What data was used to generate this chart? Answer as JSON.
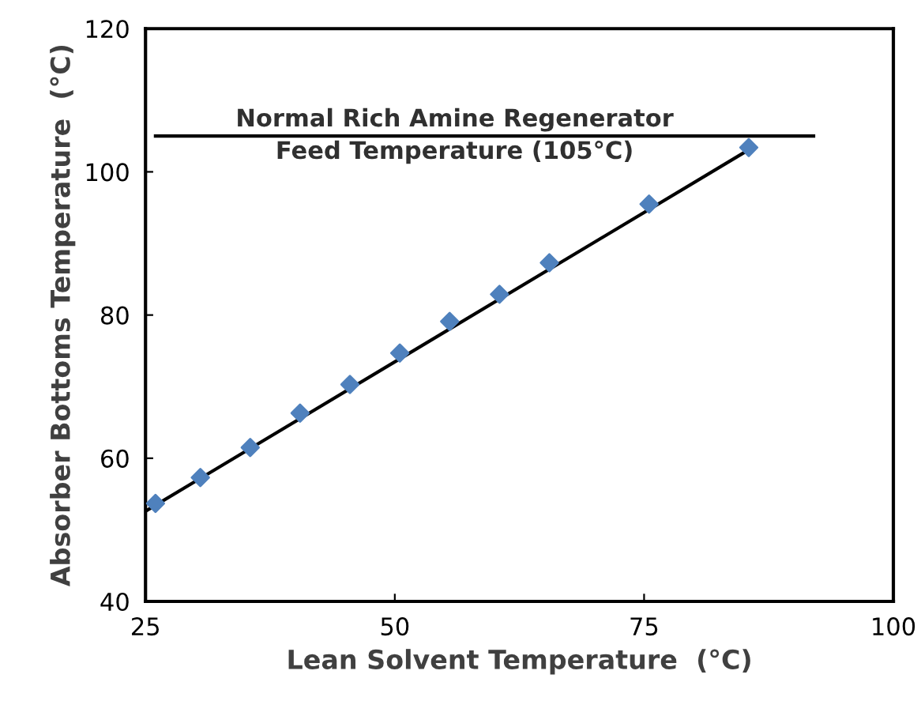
{
  "chart_data": {
    "type": "scatter",
    "xlabel": "Lean Solvent Temperature  (°C)",
    "ylabel": "Absorber Bottoms Temperature  (°C)",
    "series": [
      {
        "color": "#4f81bd",
        "marker": "diamond",
        "x": [
          26,
          30.5,
          35.5,
          40.5,
          45.5,
          50.5,
          55.5,
          60.5,
          65.5,
          75.5,
          85.5
        ],
        "values": [
          53.7,
          57.3,
          61.5,
          66.3,
          70.3,
          74.7,
          79.1,
          82.9,
          87.3,
          95.5,
          103.4
        ]
      },
      {
        "type": "line",
        "color": "#000000",
        "marker": "none",
        "line_style": "solid",
        "x": [
          25,
          86
        ],
        "values": [
          52.6,
          103.5
        ]
      },
      {
        "type": "line",
        "color": "#000000",
        "marker": "none",
        "line_style": "solid",
        "x": [
          26,
          92
        ],
        "values": [
          105,
          105
        ]
      }
    ],
    "annotations": [
      {
        "text": "Normal Rich Amine Regenerator",
        "x": 56,
        "y": 105
      },
      {
        "text": "Feed Temperature (105°C)",
        "x": 56,
        "y": 105
      }
    ],
    "xlim": [
      25,
      100
    ],
    "xticks": [
      25,
      50,
      75,
      100
    ],
    "ylim": [
      40,
      120
    ],
    "yticks": [
      40,
      60,
      80,
      100,
      120
    ],
    "grid": false,
    "legend": false
  }
}
